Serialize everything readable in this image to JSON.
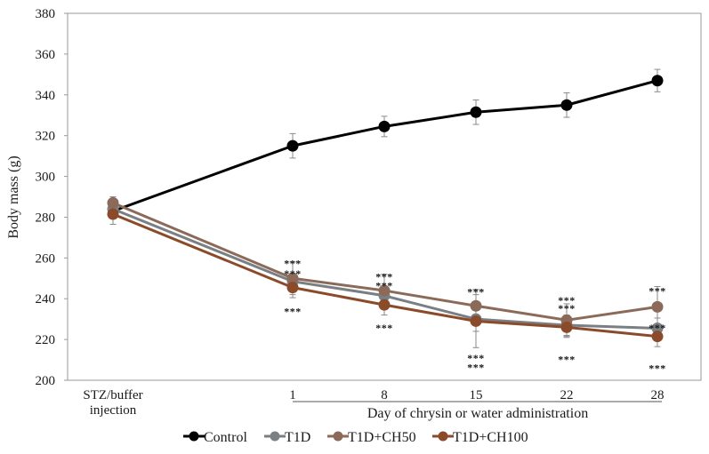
{
  "chart_data": {
    "type": "line",
    "title": "",
    "ylabel": "Body mass (g)",
    "xlabel": "Day of chrysin or water administration",
    "ylim": [
      200,
      380
    ],
    "yticks": [
      200,
      220,
      240,
      260,
      280,
      300,
      320,
      340,
      360,
      380
    ],
    "categories": [
      "STZ/buffer injection",
      "1",
      "8",
      "15",
      "22",
      "28"
    ],
    "category_lines": [
      [
        "STZ/buffer",
        "injection"
      ],
      [
        "1"
      ],
      [
        "8"
      ],
      [
        "15"
      ],
      [
        "22"
      ],
      [
        "28"
      ]
    ],
    "grid": false,
    "legend_position": "bottom",
    "series": [
      {
        "name": "Control",
        "color": "#000000",
        "values": [
          null,
          315,
          324.5,
          331.5,
          335,
          347
        ],
        "errors": [
          null,
          6,
          5,
          6,
          6,
          5.5
        ]
      },
      {
        "name": "T1D",
        "color": "#7a7f84",
        "values": [
          284,
          248.5,
          241.5,
          230,
          227,
          225.5
        ],
        "errors": [
          3,
          4,
          4,
          6,
          5,
          5
        ]
      },
      {
        "name": "T1D+CH50",
        "color": "#8c6a5a",
        "values": [
          287,
          250,
          244,
          236.5,
          229.5,
          236
        ],
        "errors": [
          3,
          8,
          8,
          8,
          8,
          10
        ]
      },
      {
        "name": "T1D+CH100",
        "color": "#8b4b2a",
        "values": [
          281.5,
          245.5,
          237,
          229,
          226,
          221.5
        ],
        "errors": [
          5,
          5,
          5,
          13,
          5,
          5
        ]
      }
    ],
    "annotations": [
      {
        "category": "1",
        "y": 259.5,
        "text": "***"
      },
      {
        "category": "1",
        "y": 254.5,
        "text": "***"
      },
      {
        "category": "1",
        "y": 236,
        "text": "***"
      },
      {
        "category": "8",
        "y": 253,
        "text": "***"
      },
      {
        "category": "8",
        "y": 248.5,
        "text": "***"
      },
      {
        "category": "8",
        "y": 228,
        "text": "***"
      },
      {
        "category": "15",
        "y": 245.5,
        "text": "***"
      },
      {
        "category": "15",
        "y": 213,
        "text": "***"
      },
      {
        "category": "15",
        "y": 208.5,
        "text": "***"
      },
      {
        "category": "22",
        "y": 241.5,
        "text": "***"
      },
      {
        "category": "22",
        "y": 237.5,
        "text": "***"
      },
      {
        "category": "22",
        "y": 212.5,
        "text": "***"
      },
      {
        "category": "28",
        "y": 246,
        "text": "***"
      },
      {
        "category": "28",
        "y": 228,
        "text": "***"
      },
      {
        "category": "28",
        "y": 208,
        "text": "***"
      }
    ]
  }
}
